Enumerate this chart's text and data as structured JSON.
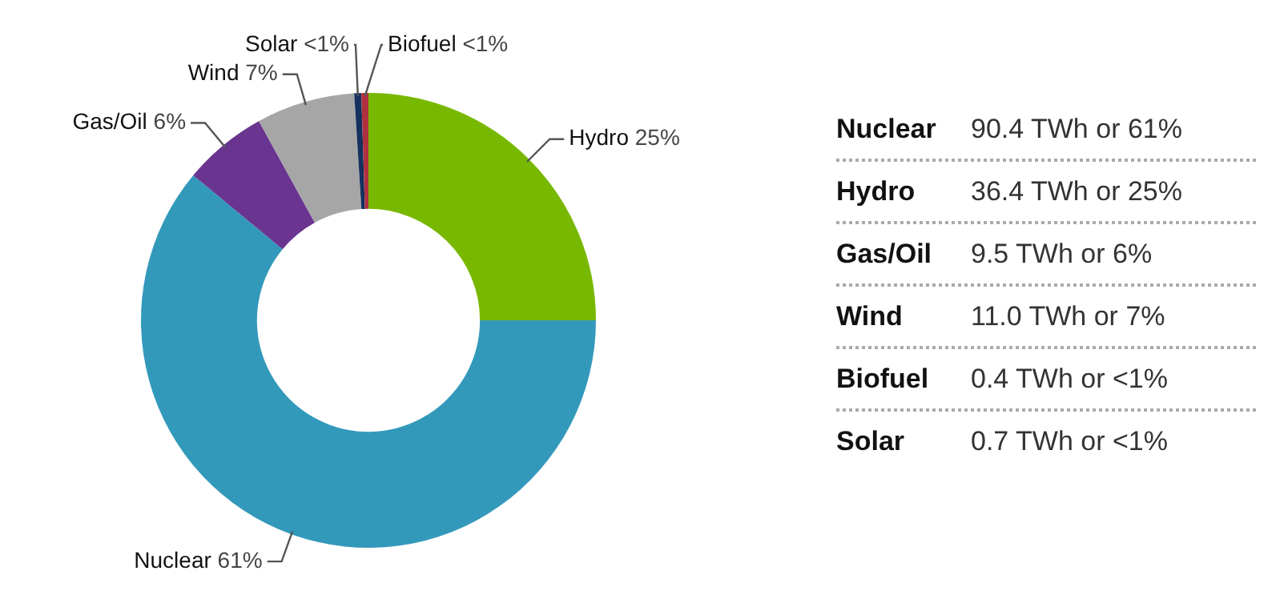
{
  "chart_data": {
    "type": "donut",
    "categories": [
      "Hydro",
      "Nuclear",
      "Gas/Oil",
      "Wind",
      "Solar",
      "Biofuel"
    ],
    "values": [
      25,
      61,
      6,
      7,
      0.5,
      0.5
    ],
    "colors": [
      "#78b800",
      "#3399bb",
      "#6a3590",
      "#a6a6a6",
      "#15315e",
      "#b03040"
    ],
    "value_labels": [
      "25%",
      "61%",
      "6%",
      "7%",
      "<1%",
      "<1%"
    ],
    "legend": false,
    "annotations": [
      "Nuclear",
      "90.4 TWh or 61%",
      "Hydro",
      "36.4 TWh or 25%",
      "Gas/Oil",
      "9.5 TWh or 6%",
      "Wind",
      "11.0 TWh or 7%",
      "Biofuel",
      "0.4 TWh or <1%",
      "Solar",
      "0.7 TWh or <1%"
    ]
  }
}
